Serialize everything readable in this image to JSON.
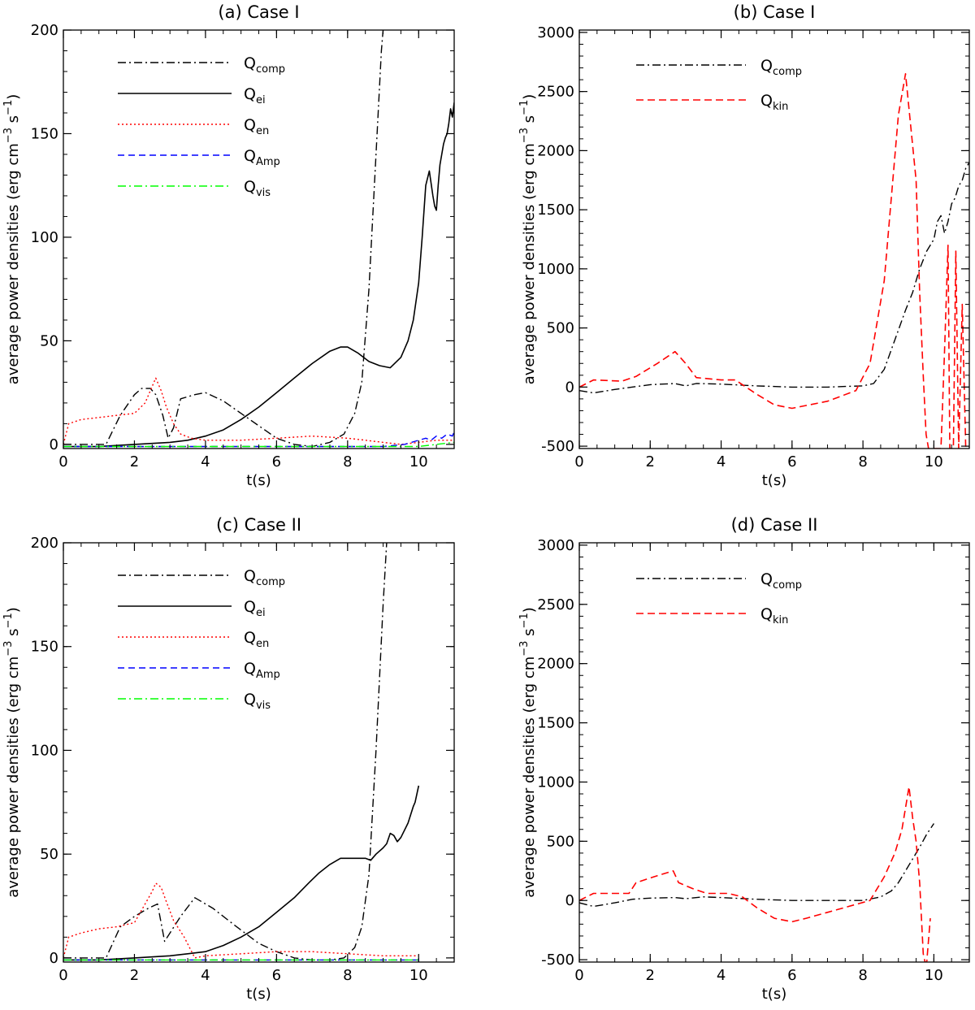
{
  "chart_data": [
    {
      "panel": "a",
      "type": "line",
      "title": "(a) Case I",
      "xlabel": "t(s)",
      "ylabel": "average power densities (erg cm",
      "ylabel_exp1": "−3",
      "ylabel_mid": " s",
      "ylabel_exp2": "−1",
      "ylabel_end": ")",
      "xlim": [
        0,
        11
      ],
      "ylim": [
        -2,
        200
      ],
      "xticks": [
        0,
        2,
        4,
        6,
        8,
        10
      ],
      "yticks": [
        0,
        50,
        100,
        150,
        200
      ],
      "legend_position": "top-left",
      "series": [
        {
          "name": "Q",
          "sub": "comp",
          "color": "#000000",
          "dash": "10,4,2,4",
          "width": 1.4,
          "x": [
            0,
            1.2,
            1.6,
            2.0,
            2.2,
            2.45,
            2.6,
            2.8,
            2.95,
            3.1,
            3.3,
            3.7,
            4.0,
            4.5,
            5.0,
            5.5,
            6.0,
            6.5,
            7.0,
            7.5,
            7.9,
            8.2,
            8.4,
            8.6,
            8.8,
            8.95,
            9.0
          ],
          "y": [
            0,
            0,
            14,
            24,
            27,
            27,
            24,
            14,
            3,
            8,
            22,
            24,
            25,
            21,
            15,
            9,
            3,
            0,
            -1,
            1,
            5,
            15,
            30,
            75,
            140,
            190,
            200
          ]
        },
        {
          "name": "Q",
          "sub": "ei",
          "color": "#000000",
          "dash": "",
          "width": 1.6,
          "x": [
            0,
            1,
            2,
            3,
            3.5,
            4.0,
            4.5,
            5.0,
            5.5,
            6.0,
            6.5,
            7.0,
            7.5,
            7.8,
            8.0,
            8.3,
            8.6,
            8.9,
            9.2,
            9.5,
            9.7,
            9.85,
            10.0,
            10.1,
            10.2,
            10.3,
            10.4,
            10.45,
            10.5,
            10.55,
            10.6,
            10.7,
            10.75,
            10.8,
            10.85,
            10.9,
            10.95,
            11.0
          ],
          "y": [
            -1,
            -1,
            0,
            1,
            2,
            4,
            7,
            12,
            18,
            25,
            32,
            39,
            45,
            47,
            47,
            44,
            40,
            38,
            37,
            42,
            50,
            60,
            78,
            100,
            125,
            132,
            120,
            115,
            113,
            125,
            135,
            145,
            148,
            150,
            155,
            162,
            158,
            165
          ]
        },
        {
          "name": "Q",
          "sub": "en",
          "color": "#ff0000",
          "dash": "2,3",
          "width": 1.4,
          "x": [
            0,
            0.15,
            0.5,
            1.0,
            1.5,
            2.0,
            2.3,
            2.5,
            2.6,
            2.75,
            2.9,
            3.1,
            3.3,
            3.6,
            4.0,
            5.0,
            6.0,
            7.0,
            8.0,
            8.5,
            9.0,
            9.5,
            10.0,
            10.5,
            11.0
          ],
          "y": [
            0,
            10,
            12,
            13,
            14,
            15,
            20,
            28,
            32,
            26,
            18,
            10,
            5,
            3,
            2,
            2,
            3,
            4,
            3,
            2,
            1,
            0,
            1,
            2,
            2
          ]
        },
        {
          "name": "Q",
          "sub": "Amp",
          "color": "#0000ff",
          "dash": "8,5",
          "width": 1.4,
          "x": [
            0,
            2,
            4,
            6,
            8,
            9,
            9.6,
            9.8,
            10.0,
            10.2,
            10.35,
            10.5,
            10.65,
            10.8,
            10.95,
            11.0
          ],
          "y": [
            -1,
            -1,
            -1,
            -1,
            -1,
            -1,
            0,
            1,
            2,
            3,
            2,
            4,
            3,
            5,
            4,
            6
          ]
        },
        {
          "name": "Q",
          "sub": "vis",
          "color": "#00ff00",
          "dash": "10,4,2,4",
          "width": 1.4,
          "x": [
            0,
            2,
            4,
            6,
            8,
            9,
            10,
            10.5,
            11.0
          ],
          "y": [
            -1,
            -1,
            -1,
            -1,
            -1,
            -1,
            -1,
            0,
            1
          ]
        }
      ]
    },
    {
      "panel": "b",
      "type": "line",
      "title": "(b) Case I",
      "xlabel": "t(s)",
      "ylabel": "average power densities (erg cm",
      "ylabel_exp1": "−3",
      "ylabel_mid": " s",
      "ylabel_exp2": "−1",
      "ylabel_end": ")",
      "xlim": [
        0,
        11
      ],
      "ylim": [
        -520,
        3020
      ],
      "xticks": [
        0,
        2,
        4,
        6,
        8,
        10
      ],
      "yticks": [
        -500,
        0,
        500,
        1000,
        1500,
        2000,
        2500,
        3000
      ],
      "legend_position": "top-left",
      "series": [
        {
          "name": "Q",
          "sub": "comp",
          "color": "#000000",
          "dash": "10,4,2,4",
          "width": 1.4,
          "x": [
            0,
            0.4,
            1.0,
            2.0,
            2.7,
            3.0,
            3.3,
            4.0,
            5.0,
            6.0,
            7.0,
            7.5,
            8.0,
            8.3,
            8.6,
            8.9,
            9.2,
            9.4,
            9.6,
            9.8,
            10.0,
            10.1,
            10.2,
            10.3,
            10.4,
            10.5,
            10.6,
            10.7,
            10.8,
            10.9,
            11.0
          ],
          "y": [
            -30,
            -50,
            -20,
            20,
            30,
            10,
            30,
            25,
            10,
            0,
            0,
            5,
            10,
            30,
            150,
            400,
            650,
            800,
            1000,
            1150,
            1250,
            1400,
            1450,
            1300,
            1400,
            1550,
            1600,
            1700,
            1750,
            1850,
            1900
          ]
        },
        {
          "name": "Q",
          "sub": "kin",
          "color": "#ff0000",
          "dash": "9,5",
          "width": 1.6,
          "x": [
            0,
            0.4,
            1.2,
            1.6,
            2.2,
            2.7,
            3.0,
            3.3,
            4.0,
            4.4,
            5.0,
            5.5,
            6.0,
            7.0,
            7.8,
            8.2,
            8.6,
            9.0,
            9.2,
            9.35,
            9.5,
            9.6,
            9.7,
            9.78,
            9.85,
            10.2,
            10.3,
            10.4,
            10.45,
            10.55,
            10.62,
            10.7,
            10.8,
            10.9
          ],
          "y": [
            0,
            60,
            50,
            90,
            200,
            300,
            200,
            80,
            60,
            60,
            -60,
            -150,
            -180,
            -120,
            -30,
            200,
            900,
            2300,
            2650,
            2200,
            1750,
            800,
            100,
            -400,
            -520,
            -520,
            300,
            1200,
            -520,
            -520,
            1150,
            -520,
            700,
            -520
          ]
        }
      ]
    },
    {
      "panel": "c",
      "type": "line",
      "title": "(c) Case II",
      "xlabel": "t(s)",
      "ylabel": "average power densities (erg cm",
      "ylabel_exp1": "−3",
      "ylabel_mid": " s",
      "ylabel_exp2": "−1",
      "ylabel_end": ")",
      "xlim": [
        0,
        11
      ],
      "ylim": [
        -2,
        200
      ],
      "xticks": [
        0,
        2,
        4,
        6,
        8,
        10
      ],
      "yticks": [
        0,
        50,
        100,
        150,
        200
      ],
      "legend_position": "top-left",
      "series": [
        {
          "name": "Q",
          "sub": "comp",
          "color": "#000000",
          "dash": "10,4,2,4",
          "width": 1.4,
          "x": [
            0,
            1.2,
            1.6,
            2.0,
            2.4,
            2.65,
            2.85,
            3.0,
            3.3,
            3.7,
            4.2,
            4.8,
            5.5,
            6.0,
            6.5,
            7.0,
            7.5,
            7.9,
            8.2,
            8.4,
            8.6,
            8.8,
            9.0,
            9.1
          ],
          "y": [
            0,
            0,
            15,
            20,
            24,
            26,
            8,
            12,
            20,
            29,
            24,
            16,
            7,
            3,
            0,
            -1,
            -1,
            0,
            5,
            15,
            40,
            100,
            170,
            200
          ]
        },
        {
          "name": "Q",
          "sub": "ei",
          "color": "#000000",
          "dash": "",
          "width": 1.6,
          "x": [
            0,
            1,
            2,
            3,
            3.5,
            4.0,
            4.5,
            5.0,
            5.5,
            6.0,
            6.5,
            6.9,
            7.2,
            7.5,
            7.8,
            8.0,
            8.3,
            8.5,
            8.65,
            8.8,
            9.0,
            9.1,
            9.2,
            9.3,
            9.4,
            9.5,
            9.7,
            9.85,
            9.9,
            10.0
          ],
          "y": [
            -1,
            -1,
            0,
            1,
            2,
            3,
            6,
            10,
            15,
            22,
            29,
            36,
            41,
            45,
            48,
            48,
            48,
            48,
            47,
            50,
            53,
            55,
            60,
            59,
            56,
            58,
            65,
            73,
            75,
            83
          ]
        },
        {
          "name": "Q",
          "sub": "en",
          "color": "#ff0000",
          "dash": "2,3",
          "width": 1.4,
          "x": [
            0,
            0.15,
            0.5,
            1.0,
            1.5,
            2.0,
            2.3,
            2.5,
            2.6,
            2.75,
            2.9,
            3.1,
            3.4,
            3.7,
            4.0,
            5.0,
            6.0,
            7.0,
            8.0,
            9.0,
            10.0
          ],
          "y": [
            0,
            10,
            12,
            14,
            15,
            17,
            26,
            32,
            36,
            34,
            27,
            18,
            10,
            0,
            1,
            2,
            3,
            3,
            2,
            1,
            1
          ]
        },
        {
          "name": "Q",
          "sub": "Amp",
          "color": "#0000ff",
          "dash": "8,5",
          "width": 1.4,
          "x": [
            0,
            2,
            4,
            6,
            8,
            9,
            10
          ],
          "y": [
            -1,
            -1,
            -1,
            -1,
            -1,
            -1,
            -1
          ]
        },
        {
          "name": "Q",
          "sub": "vis",
          "color": "#00ff00",
          "dash": "10,4,2,4",
          "width": 1.4,
          "x": [
            0,
            2,
            4,
            6,
            8,
            9,
            10
          ],
          "y": [
            -1,
            -1,
            -1,
            -1,
            -1,
            -1,
            -1
          ]
        }
      ]
    },
    {
      "panel": "d",
      "type": "line",
      "title": "(d) Case II",
      "xlabel": "t(s)",
      "ylabel": "average power densities (erg cm",
      "ylabel_exp1": "−3",
      "ylabel_mid": " s",
      "ylabel_exp2": "−1",
      "ylabel_end": ")",
      "xlim": [
        0,
        11
      ],
      "ylim": [
        -520,
        3020
      ],
      "xticks": [
        0,
        2,
        4,
        6,
        8,
        10
      ],
      "yticks": [
        -500,
        0,
        500,
        1000,
        1500,
        2000,
        2500,
        3000
      ],
      "legend_position": "top-left",
      "series": [
        {
          "name": "Q",
          "sub": "comp",
          "color": "#000000",
          "dash": "10,4,2,4",
          "width": 1.4,
          "x": [
            0,
            0.4,
            1.0,
            1.5,
            2.0,
            2.7,
            3.0,
            3.5,
            4.0,
            5.0,
            6.0,
            7.0,
            8.0,
            8.5,
            8.8,
            9.0,
            9.2,
            9.4,
            9.6,
            9.8,
            10.0
          ],
          "y": [
            -20,
            -50,
            -20,
            10,
            20,
            25,
            15,
            30,
            25,
            10,
            0,
            0,
            0,
            30,
            80,
            150,
            250,
            350,
            450,
            560,
            650
          ]
        },
        {
          "name": "Q",
          "sub": "kin",
          "color": "#ff0000",
          "dash": "9,5",
          "width": 1.6,
          "x": [
            0,
            0.4,
            1.4,
            1.6,
            2.1,
            2.65,
            2.8,
            3.2,
            3.6,
            4.2,
            4.6,
            5.0,
            5.5,
            6.0,
            6.4,
            7.0,
            7.6,
            8.2,
            8.6,
            8.9,
            9.1,
            9.3,
            9.4,
            9.5,
            9.6,
            9.7,
            9.75,
            9.8,
            9.9
          ],
          "y": [
            0,
            60,
            60,
            150,
            200,
            250,
            150,
            100,
            60,
            60,
            30,
            -60,
            -150,
            -180,
            -150,
            -100,
            -50,
            0,
            200,
            400,
            600,
            960,
            700,
            500,
            150,
            -450,
            -520,
            -520,
            -150
          ]
        }
      ]
    }
  ]
}
